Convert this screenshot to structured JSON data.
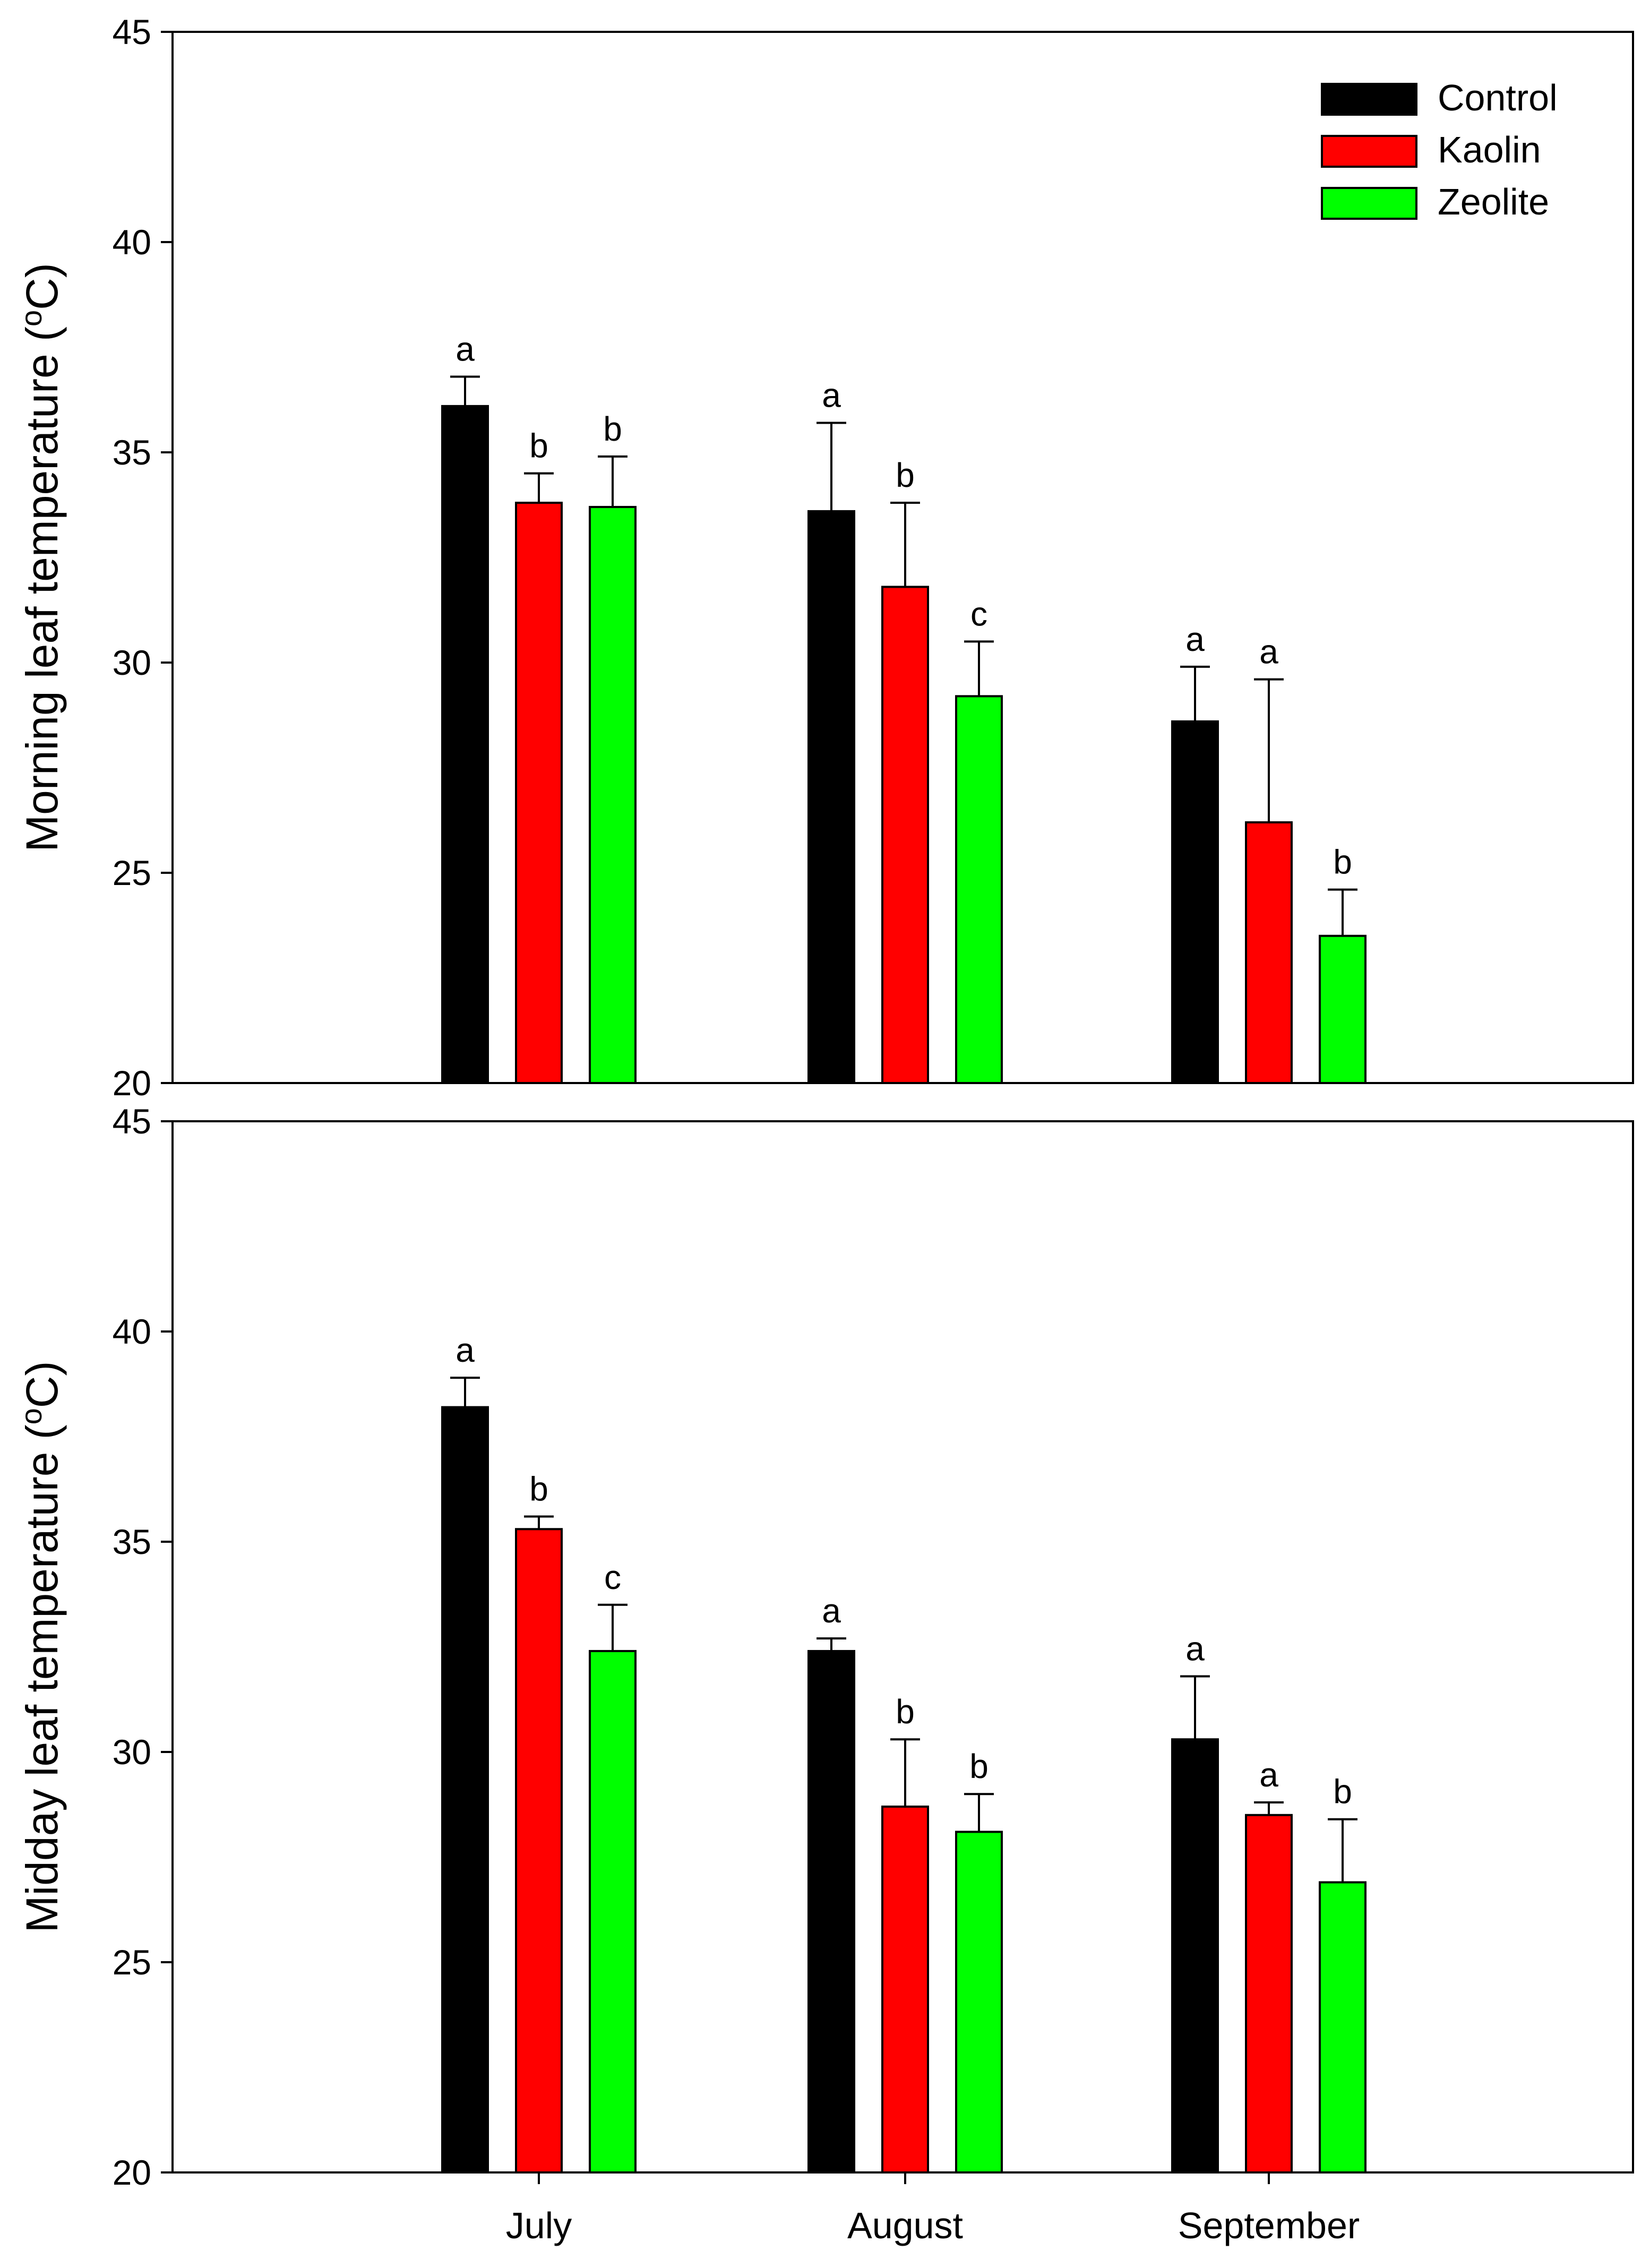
{
  "chart_data": [
    {
      "type": "bar",
      "panel": "top",
      "ylabel_main": "Morning leaf temperature (",
      "ylabel_sup": "o",
      "ylabel_end": "C)",
      "ylim": [
        20,
        45
      ],
      "yticks": [
        "20",
        "25",
        "30",
        "35",
        "40",
        "45"
      ],
      "categories": [
        "July",
        "August",
        "September"
      ],
      "series": [
        {
          "name": "Control",
          "color": "#000000",
          "values": [
            36.1,
            33.6,
            28.6
          ],
          "errors": [
            0.7,
            2.1,
            1.3
          ],
          "letters": [
            "a",
            "a",
            "a"
          ]
        },
        {
          "name": "Kaolin",
          "color": "#ff0000",
          "values": [
            33.8,
            31.8,
            26.2
          ],
          "errors": [
            0.7,
            2.0,
            3.4
          ],
          "letters": [
            "b",
            "b",
            "a"
          ]
        },
        {
          "name": "Zeolite",
          "color": "#00ff00",
          "values": [
            33.7,
            29.2,
            23.5
          ],
          "errors": [
            1.2,
            1.3,
            1.1
          ],
          "letters": [
            "b",
            "c",
            "b"
          ]
        }
      ]
    },
    {
      "type": "bar",
      "panel": "bottom",
      "ylabel_main": "Midday leaf temperature (",
      "ylabel_sup": "o",
      "ylabel_end": "C)",
      "ylim": [
        20,
        45
      ],
      "yticks": [
        "20",
        "25",
        "30",
        "35",
        "40",
        "45"
      ],
      "categories": [
        "July",
        "August",
        "September"
      ],
      "series": [
        {
          "name": "Control",
          "color": "#000000",
          "values": [
            38.2,
            32.4,
            30.3
          ],
          "errors": [
            0.7,
            0.3,
            1.5
          ],
          "letters": [
            "a",
            "a",
            "a"
          ]
        },
        {
          "name": "Kaolin",
          "color": "#ff0000",
          "values": [
            35.3,
            28.7,
            28.5
          ],
          "errors": [
            0.3,
            1.6,
            0.3
          ],
          "letters": [
            "b",
            "b",
            "a"
          ]
        },
        {
          "name": "Zeolite",
          "color": "#00ff00",
          "values": [
            32.4,
            28.1,
            26.9
          ],
          "errors": [
            1.1,
            0.9,
            1.5
          ],
          "letters": [
            "c",
            "b",
            "b"
          ]
        }
      ]
    }
  ],
  "legend": [
    {
      "label": "Control",
      "color": "#000000"
    },
    {
      "label": "Kaolin",
      "color": "#ff0000"
    },
    {
      "label": "Zeolite",
      "color": "#00ff00"
    }
  ]
}
